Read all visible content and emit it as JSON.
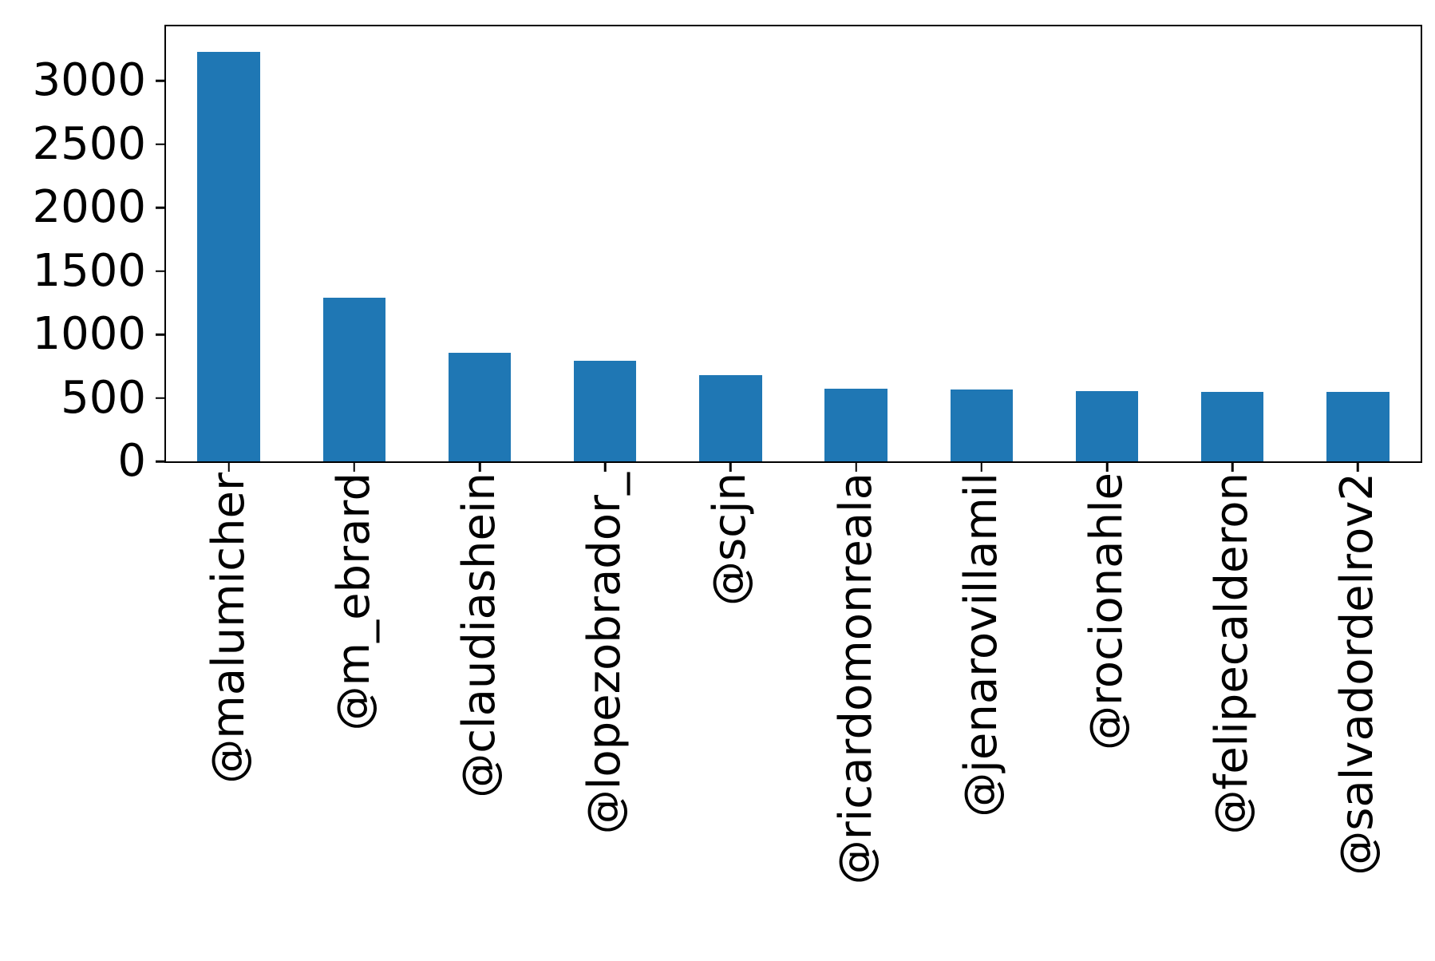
{
  "chart_data": {
    "type": "bar",
    "title": "",
    "xlabel": "",
    "ylabel": "",
    "categories": [
      "@malumicher",
      "@m_ebrard",
      "@claudiashein",
      "@lopezobrador_",
      "@scjn",
      "@ricardomonreala",
      "@jenarovillamil",
      "@rocionahle",
      "@felipecalderon",
      "@salvadordelrov2"
    ],
    "values": [
      3230,
      1290,
      855,
      790,
      680,
      570,
      565,
      555,
      550,
      545
    ],
    "yticks": [
      0,
      500,
      1000,
      1500,
      2000,
      2500,
      3000
    ],
    "ylim": [
      0,
      3430
    ],
    "bar_color": "#1f77b4",
    "axis_color": "#000000",
    "text_color": "#000000",
    "grid": false,
    "legend_position": "none",
    "bar_width_fraction": 0.5,
    "x_label_rotation_deg": 90
  }
}
